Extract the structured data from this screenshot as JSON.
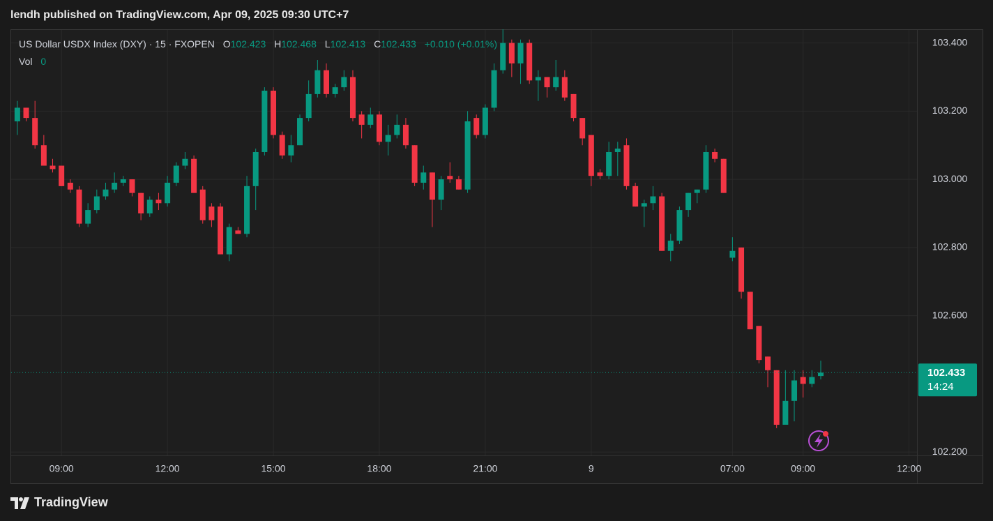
{
  "published": "lendh published on TradingView.com, Apr 09, 2025 09:30 UTC+7",
  "brand": "TradingView",
  "chart_data": {
    "type": "candlestick",
    "title": "US Dollar USDX Index (DXY) · 15 · FXOPEN",
    "ohlc_labels": {
      "open": "O",
      "high": "H",
      "low": "L",
      "close": "C"
    },
    "change": "+0.010 (+0.01%)",
    "volume_label": "Vol",
    "volume": 0,
    "countdown": "14:24",
    "up_color": "#089981",
    "down_color": "#f23645",
    "grid": true,
    "open": [
      103.17,
      103.21,
      103.18,
      103.1,
      103.04,
      103.04,
      102.99,
      102.97,
      102.87,
      102.91,
      102.95,
      102.97,
      102.99,
      103.0,
      102.96,
      102.9,
      102.94,
      102.93,
      102.99,
      103.04,
      103.06,
      102.97,
      102.92,
      102.92,
      102.78,
      102.85,
      102.84,
      102.98,
      103.08,
      103.26,
      103.13,
      103.07,
      103.1,
      103.18,
      103.25,
      103.32,
      103.25,
      103.27,
      103.3,
      103.19,
      103.16,
      103.19,
      103.11,
      103.13,
      103.16,
      103.1,
      102.99,
      103.02,
      102.94,
      103.01,
      103.0,
      102.97,
      103.18,
      103.13,
      103.21,
      103.32,
      103.4,
      103.34,
      103.4,
      103.29,
      103.3,
      103.27,
      103.3,
      103.25,
      103.18,
      103.13,
      103.02,
      103.01,
      103.08,
      103.1,
      102.98,
      102.92,
      102.93,
      102.95,
      102.79,
      102.82,
      102.91,
      102.96,
      102.97,
      103.08,
      103.06,
      102.77,
      102.8,
      102.67,
      102.57,
      102.48,
      102.44,
      102.28,
      102.35,
      102.42,
      102.4,
      102.423
    ],
    "high": [
      103.23,
      103.21,
      103.23,
      103.13,
      103.06,
      103.04,
      103.0,
      102.98,
      102.93,
      102.97,
      102.99,
      103.02,
      103.01,
      103.0,
      102.96,
      102.95,
      102.96,
      103.01,
      103.05,
      103.08,
      103.07,
      102.98,
      102.93,
      102.93,
      102.87,
      102.86,
      103.01,
      103.09,
      103.27,
      103.27,
      103.14,
      103.13,
      103.19,
      103.29,
      103.35,
      103.34,
      103.28,
      103.32,
      103.32,
      103.2,
      103.21,
      103.2,
      103.16,
      103.19,
      103.18,
      103.1,
      103.04,
      103.02,
      103.01,
      103.05,
      103.01,
      103.2,
      103.19,
      103.22,
      103.34,
      103.44,
      103.41,
      103.41,
      103.41,
      103.32,
      103.3,
      103.35,
      103.32,
      103.25,
      103.18,
      103.13,
      103.03,
      103.11,
      103.11,
      103.12,
      102.99,
      102.94,
      102.98,
      102.96,
      102.84,
      102.92,
      102.96,
      102.97,
      103.1,
      103.09,
      103.06,
      102.83,
      102.8,
      102.67,
      102.57,
      102.48,
      102.44,
      102.44,
      102.44,
      102.44,
      102.44,
      102.468
    ],
    "low": [
      103.13,
      103.17,
      103.09,
      103.04,
      103.02,
      102.98,
      102.96,
      102.86,
      102.86,
      102.9,
      102.94,
      102.96,
      102.98,
      102.95,
      102.88,
      102.89,
      102.91,
      102.92,
      102.98,
      103.03,
      102.96,
      102.87,
      102.86,
      102.78,
      102.76,
      102.84,
      102.83,
      102.91,
      103.07,
      103.12,
      103.06,
      103.05,
      103.1,
      103.17,
      103.24,
      103.24,
      103.24,
      103.26,
      103.17,
      103.12,
      103.15,
      103.1,
      103.07,
      103.12,
      103.09,
      102.98,
      102.97,
      102.86,
      102.91,
      102.99,
      102.97,
      102.96,
      103.12,
      103.12,
      103.2,
      103.31,
      103.3,
      103.28,
      103.28,
      103.23,
      103.24,
      103.26,
      103.23,
      103.17,
      103.1,
      102.98,
      103.0,
      103.0,
      103.01,
      102.97,
      102.92,
      102.86,
      102.91,
      102.79,
      102.76,
      102.81,
      102.89,
      102.93,
      102.96,
      103.05,
      102.96,
      102.76,
      102.65,
      102.56,
      102.46,
      102.39,
      102.27,
      102.28,
      102.29,
      102.36,
      102.39,
      102.413
    ],
    "close": [
      103.21,
      103.18,
      103.1,
      103.04,
      103.03,
      102.98,
      102.97,
      102.87,
      102.91,
      102.95,
      102.97,
      102.99,
      103.0,
      102.96,
      102.9,
      102.94,
      102.93,
      102.99,
      103.04,
      103.06,
      102.96,
      102.88,
      102.88,
      102.78,
      102.86,
      102.84,
      102.98,
      103.08,
      103.26,
      103.13,
      103.07,
      103.1,
      103.18,
      103.25,
      103.32,
      103.25,
      103.27,
      103.3,
      103.18,
      103.16,
      103.19,
      103.11,
      103.13,
      103.16,
      103.1,
      102.99,
      103.02,
      102.94,
      103.0,
      103.0,
      102.97,
      103.17,
      103.13,
      103.21,
      103.32,
      103.4,
      103.34,
      103.4,
      103.29,
      103.3,
      103.27,
      103.3,
      103.24,
      103.18,
      103.12,
      103.01,
      103.01,
      103.08,
      103.09,
      102.98,
      102.92,
      102.93,
      102.95,
      102.79,
      102.82,
      102.91,
      102.96,
      102.97,
      103.08,
      103.06,
      102.96,
      102.79,
      102.67,
      102.56,
      102.47,
      102.44,
      102.28,
      102.35,
      102.41,
      102.4,
      102.42,
      102.433
    ],
    "close_labels": {
      "91": "102.433"
    },
    "open_labels": {
      "91": "102.423"
    },
    "high_labels": {
      "91": "102.468"
    },
    "low_labels": {
      "91": "102.413"
    },
    "xlim": [
      -0.7,
      101.9
    ],
    "xticks": [
      {
        "value": 5,
        "label": "09:00"
      },
      {
        "value": 17,
        "label": "12:00"
      },
      {
        "value": 29,
        "label": "15:00"
      },
      {
        "value": 41,
        "label": "18:00"
      },
      {
        "value": 53,
        "label": "21:00"
      },
      {
        "value": 65,
        "label": "9"
      },
      {
        "value": 81,
        "label": "07:00"
      },
      {
        "value": 89,
        "label": "09:00"
      },
      {
        "value": 101,
        "label": "12:00"
      }
    ],
    "ylim": [
      102.19,
      103.438
    ],
    "yticks": [
      {
        "value": 102.2,
        "label": "102.200"
      },
      {
        "value": 102.6,
        "label": "102.600"
      },
      {
        "value": 102.8,
        "label": "102.800"
      },
      {
        "value": 103.0,
        "label": "103.000"
      },
      {
        "value": 103.2,
        "label": "103.200"
      },
      {
        "value": 103.4,
        "label": "103.400"
      }
    ]
  }
}
